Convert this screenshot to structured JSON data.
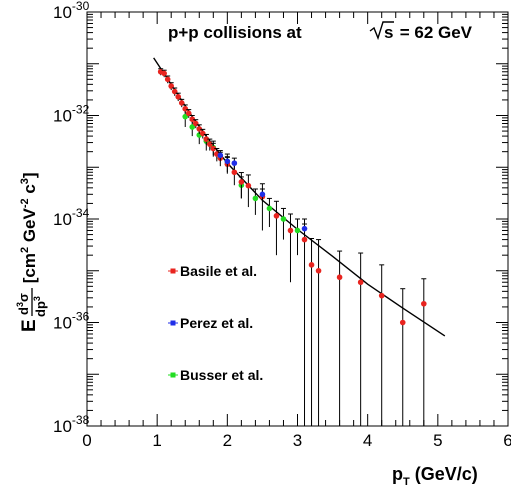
{
  "chart_data": {
    "type": "scatter",
    "title": "p+p collisions at √s = 62 GeV",
    "title_parts": {
      "prefix": "p+p collisions at ",
      "sqrt_symbol": "√",
      "sqrt_arg": "s",
      "suffix": " = 62 GeV"
    },
    "xlabel": {
      "main": "p",
      "sub": "T",
      "rest": " (GeV/c)"
    },
    "ylabel": {
      "E": "E",
      "num_d": "d",
      "num_exp": "3",
      "num_sigma": "σ",
      "den_dp": "dp",
      "den_exp": "3",
      "units_open": " [cm",
      "units_cm_exp": "2",
      "units_gev": " GeV",
      "units_gev_exp": "-2",
      "units_c": " c",
      "units_c_exp": "3",
      "units_close": "]"
    },
    "xlim": [
      0,
      6
    ],
    "ylim": [
      1e-38,
      1e-30
    ],
    "yscale": "log",
    "grid": false,
    "legend_position": "left-middle",
    "x_ticks": [
      "0",
      "1",
      "2",
      "3",
      "4",
      "5",
      "6"
    ],
    "y_ticks": [
      {
        "base": "10",
        "exp": "-30",
        "value": 1e-30
      },
      {
        "base": "10",
        "exp": "-32",
        "value": 1e-32
      },
      {
        "base": "10",
        "exp": "-34",
        "value": 1e-34
      },
      {
        "base": "10",
        "exp": "-36",
        "value": 1e-36
      },
      {
        "base": "10",
        "exp": "-38",
        "value": 1e-38
      }
    ],
    "series": [
      {
        "name": "Basile et al.",
        "color": "#e8241f",
        "points": [
          {
            "x": 1.05,
            "y": 7e-32,
            "lo": 6e-32,
            "hi": 8e-32
          },
          {
            "x": 1.1,
            "y": 6.5e-32,
            "lo": 5.5e-32,
            "hi": 7.5e-32
          },
          {
            "x": 1.15,
            "y": 5e-32,
            "lo": 4.2e-32,
            "hi": 5.8e-32
          },
          {
            "x": 1.2,
            "y": 3.7e-32,
            "lo": 3.1e-32,
            "hi": 4.3e-32
          },
          {
            "x": 1.25,
            "y": 2.9e-32,
            "lo": 2.4e-32,
            "hi": 3.4e-32
          },
          {
            "x": 1.3,
            "y": 2.3e-32,
            "lo": 1.9e-32,
            "hi": 2.7e-32
          },
          {
            "x": 1.35,
            "y": 1.75e-32,
            "lo": 1.45e-32,
            "hi": 2.05e-32
          },
          {
            "x": 1.4,
            "y": 1.35e-32,
            "lo": 1.1e-32,
            "hi": 1.6e-32
          },
          {
            "x": 1.45,
            "y": 1.1e-32,
            "lo": 9e-33,
            "hi": 1.3e-32
          },
          {
            "x": 1.5,
            "y": 8.5e-33,
            "lo": 7e-33,
            "hi": 1e-32
          },
          {
            "x": 1.55,
            "y": 7e-33,
            "lo": 5.7e-33,
            "hi": 8.3e-33
          },
          {
            "x": 1.6,
            "y": 5.5e-33,
            "lo": 4.4e-33,
            "hi": 6.6e-33
          },
          {
            "x": 1.65,
            "y": 4.5e-33,
            "lo": 3.6e-33,
            "hi": 5.4e-33
          },
          {
            "x": 1.7,
            "y": 3.5e-33,
            "lo": 2.7e-33,
            "hi": 4.3e-33
          },
          {
            "x": 1.75,
            "y": 2.8e-33,
            "lo": 2.1e-33,
            "hi": 3.5e-33
          },
          {
            "x": 1.8,
            "y": 2.3e-33,
            "lo": 1.7e-33,
            "hi": 2.9e-33
          },
          {
            "x": 1.85,
            "y": 1.8e-33,
            "lo": 1.3e-33,
            "hi": 2.3e-33
          },
          {
            "x": 1.9,
            "y": 1.5e-33,
            "lo": 1.05e-33,
            "hi": 1.95e-33
          },
          {
            "x": 2.0,
            "y": 1.15e-33,
            "lo": 7.5e-34,
            "hi": 1.55e-33
          },
          {
            "x": 2.1,
            "y": 8e-34,
            "lo": 4.5e-34,
            "hi": 1.15e-33
          },
          {
            "x": 2.2,
            "y": 5.2e-34,
            "lo": 2.5e-34,
            "hi": 7.9e-34
          },
          {
            "x": 2.3,
            "y": 4.4e-34,
            "lo": 1.7e-34,
            "hi": 7.1e-34
          },
          {
            "x": 2.5,
            "y": 2.7e-34,
            "lo": 6e-35,
            "hi": 4.8e-34
          },
          {
            "x": 2.7,
            "y": 1.15e-34,
            "lo": 2e-35,
            "hi": 2.2e-34
          },
          {
            "x": 2.9,
            "y": 6e-35,
            "lo": 6e-36,
            "hi": 1.25e-34
          },
          {
            "x": 3.1,
            "y": 4e-35,
            "lo": 1e-38,
            "hi": 1e-34
          },
          {
            "x": 3.2,
            "y": 1.3e-35,
            "lo": 1e-38,
            "hi": 4.2e-35
          },
          {
            "x": 3.3,
            "y": 1e-35,
            "lo": 1e-38,
            "hi": 4e-35
          },
          {
            "x": 3.6,
            "y": 7.5e-36,
            "lo": 1e-38,
            "hi": 2.4e-35
          },
          {
            "x": 3.9,
            "y": 6e-36,
            "lo": 1e-38,
            "hi": 2.2e-35
          },
          {
            "x": 4.2,
            "y": 3.3e-36,
            "lo": 1e-38,
            "hi": 1.3e-35
          },
          {
            "x": 4.5,
            "y": 1e-36,
            "lo": 1e-38,
            "hi": 4.5e-36
          },
          {
            "x": 4.8,
            "y": 2.3e-36,
            "lo": 1e-38,
            "hi": 7e-36
          }
        ]
      },
      {
        "name": "Perez et al.",
        "color": "#1f2ee8",
        "points": [
          {
            "x": 1.9,
            "y": 1.7e-33,
            "lo": 1.3e-33,
            "hi": 2.1e-33
          },
          {
            "x": 2.0,
            "y": 1.3e-33,
            "lo": 1e-33,
            "hi": 1.6e-33
          },
          {
            "x": 2.1,
            "y": 1.2e-33,
            "lo": 9e-34,
            "hi": 1.5e-33
          },
          {
            "x": 2.5,
            "y": 3e-34,
            "lo": 2.2e-34,
            "hi": 3.8e-34
          },
          {
            "x": 3.1,
            "y": 6.5e-35,
            "lo": 5e-35,
            "hi": 8e-35
          }
        ]
      },
      {
        "name": "Busser et al.",
        "color": "#22dd22",
        "points": [
          {
            "x": 1.4,
            "y": 9.5e-33,
            "lo": 6e-33,
            "hi": 1.3e-32
          },
          {
            "x": 1.5,
            "y": 6e-33,
            "lo": 4e-33,
            "hi": 8e-33
          },
          {
            "x": 1.6,
            "y": 4.2e-33,
            "lo": 2.8e-33,
            "hi": 5.6e-33
          },
          {
            "x": 1.7,
            "y": 3.2e-33,
            "lo": 2.1e-33,
            "hi": 4.3e-33
          },
          {
            "x": 1.8,
            "y": 2.4e-33,
            "lo": 1.6e-33,
            "hi": 3.2e-33
          },
          {
            "x": 2.0,
            "y": 1.3e-33,
            "lo": 8e-34,
            "hi": 1.8e-33
          },
          {
            "x": 2.2,
            "y": 4.5e-34,
            "lo": 2.5e-34,
            "hi": 6.5e-34
          },
          {
            "x": 2.4,
            "y": 2.5e-34,
            "lo": 1.2e-34,
            "hi": 3.8e-34
          },
          {
            "x": 2.6,
            "y": 1.6e-34,
            "lo": 7e-35,
            "hi": 2.5e-34
          },
          {
            "x": 2.8,
            "y": 1e-34,
            "lo": 4e-35,
            "hi": 1.6e-34
          },
          {
            "x": 3.0,
            "y": 6e-35,
            "lo": 2e-35,
            "hi": 1e-34
          }
        ]
      }
    ],
    "fit_curve": {
      "color": "#000000",
      "points": [
        {
          "x": 0.95,
          "y": 1.3e-31
        },
        {
          "x": 1.2,
          "y": 4e-32
        },
        {
          "x": 1.5,
          "y": 9.5e-33
        },
        {
          "x": 1.75,
          "y": 3.2e-33
        },
        {
          "x": 2.0,
          "y": 1.2e-33
        },
        {
          "x": 2.5,
          "y": 2.3e-34
        },
        {
          "x": 3.0,
          "y": 6.3e-35
        },
        {
          "x": 3.5,
          "y": 1.9e-35
        },
        {
          "x": 4.0,
          "y": 5.5e-36
        },
        {
          "x": 4.5,
          "y": 1.9e-36
        },
        {
          "x": 5.1,
          "y": 5.5e-37
        }
      ]
    }
  }
}
